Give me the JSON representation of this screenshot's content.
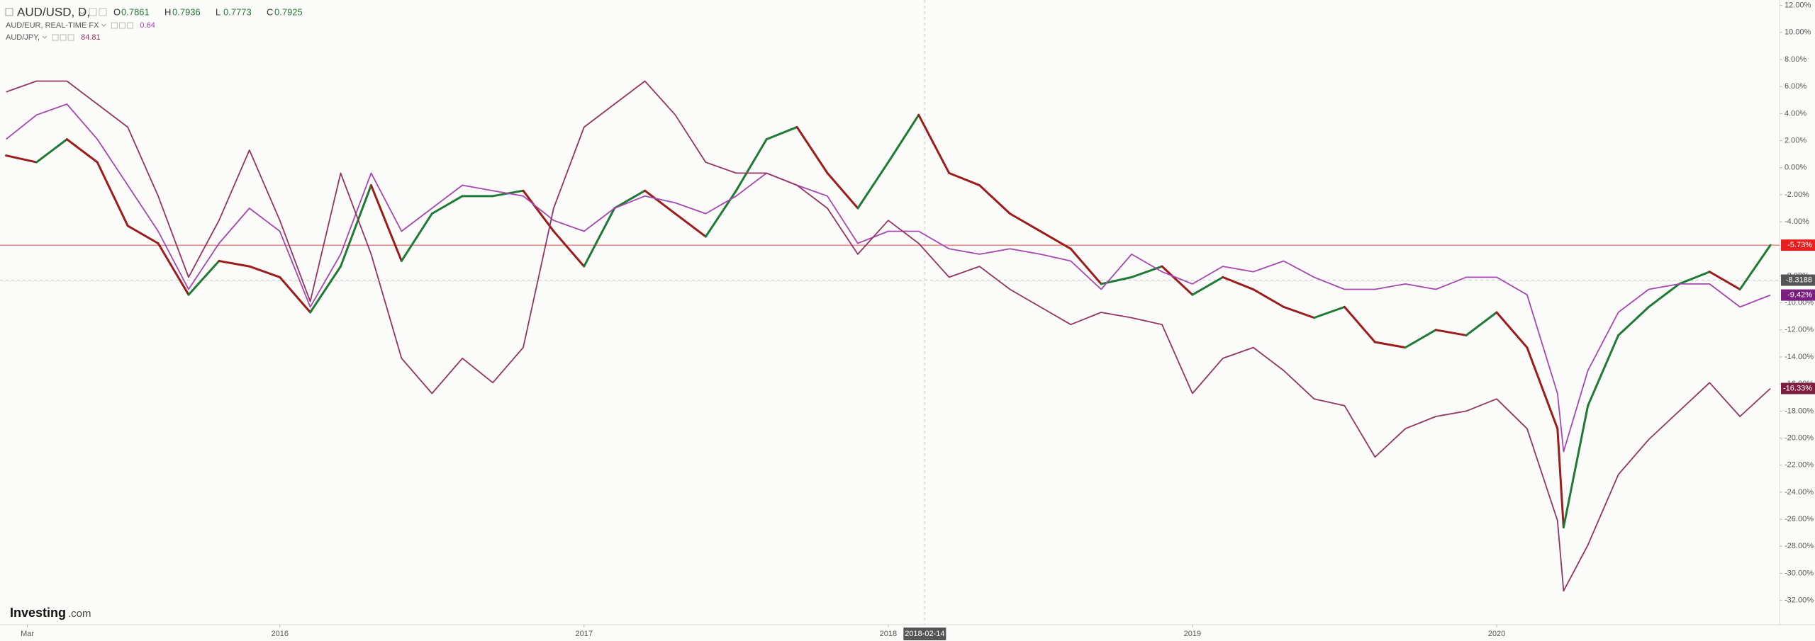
{
  "header": {
    "symbol": "AUD/USD, D,",
    "ohlc": [
      {
        "label": "O",
        "value": 0.7861
      },
      {
        "label": "H",
        "value": 0.7936
      },
      {
        "label": "L",
        "value": 0.7773
      },
      {
        "label": "C",
        "value": 0.7925
      }
    ]
  },
  "logo": {
    "brand": "Investing",
    "suffix": ".com"
  },
  "chart_data": {
    "type": "line",
    "x": [
      2015.1,
      2015.2,
      2015.3,
      2015.4,
      2015.5,
      2015.6,
      2015.7,
      2015.8,
      2015.9,
      2016.0,
      2016.1,
      2016.2,
      2016.3,
      2016.4,
      2016.5,
      2016.6,
      2016.7,
      2016.8,
      2016.9,
      2017.0,
      2017.1,
      2017.2,
      2017.3,
      2017.4,
      2017.5,
      2017.6,
      2017.7,
      2017.8,
      2017.9,
      2018.0,
      2018.1,
      2018.2,
      2018.3,
      2018.4,
      2018.5,
      2018.6,
      2018.7,
      2018.8,
      2018.9,
      2019.0,
      2019.1,
      2019.2,
      2019.3,
      2019.4,
      2019.5,
      2019.6,
      2019.7,
      2019.8,
      2019.9,
      2020.0,
      2020.1,
      2020.2,
      2020.22,
      2020.3,
      2020.4,
      2020.5,
      2020.6,
      2020.7,
      2020.8,
      2020.9
    ],
    "series": [
      {
        "name": "AUD/USD, D,",
        "style": "candle",
        "up_color": "#1e7a34",
        "down_color": "#9c1c1c",
        "color": "#2b5e2b",
        "values": [
          0.9,
          0.4,
          2.1,
          0.4,
          -4.3,
          -5.6,
          -9.4,
          -6.9,
          -7.3,
          -8.1,
          -10.7,
          -7.3,
          -1.3,
          -6.9,
          -3.4,
          -2.1,
          -2.1,
          -1.7,
          -4.7,
          -7.3,
          -3.0,
          -1.7,
          -3.4,
          -5.1,
          -1.7,
          2.1,
          3.0,
          -0.4,
          -3.0,
          0.4,
          3.9,
          -0.4,
          -1.3,
          -3.4,
          -4.7,
          -6.0,
          -8.6,
          -8.1,
          -7.3,
          -9.4,
          -8.1,
          -9.0,
          -10.3,
          -11.1,
          -10.3,
          -12.9,
          -13.3,
          -12.0,
          -12.4,
          -10.7,
          -13.3,
          -19.3,
          -26.6,
          -17.6,
          -12.4,
          -10.3,
          -8.6,
          -7.7,
          -9.0,
          -5.73
        ]
      },
      {
        "name": "AUD/EUR, REAL-TIME FX",
        "quote": 0.64,
        "color": "#a646b0",
        "values": [
          2.1,
          3.9,
          4.7,
          2.1,
          -1.3,
          -4.7,
          -9.0,
          -5.6,
          -3.0,
          -4.7,
          -10.3,
          -6.4,
          -0.4,
          -4.7,
          -3.0,
          -1.3,
          -1.7,
          -2.1,
          -3.9,
          -4.7,
          -3.0,
          -2.1,
          -2.6,
          -3.4,
          -2.1,
          -0.4,
          -1.3,
          -2.1,
          -5.6,
          -4.7,
          -4.7,
          -6.0,
          -6.4,
          -6.0,
          -6.4,
          -6.9,
          -9.0,
          -6.4,
          -7.7,
          -8.6,
          -7.3,
          -7.7,
          -6.9,
          -8.1,
          -9.0,
          -9.0,
          -8.6,
          -9.0,
          -8.1,
          -8.1,
          -9.4,
          -16.7,
          -21.0,
          -15.0,
          -10.7,
          -9.0,
          -8.6,
          -8.6,
          -10.3,
          -9.42
        ]
      },
      {
        "name": "AUD/JPY,",
        "quote": 84.81,
        "color": "#933461",
        "values": [
          5.6,
          6.4,
          6.4,
          4.7,
          3.0,
          -2.1,
          -8.1,
          -3.9,
          1.3,
          -3.9,
          -9.9,
          -0.4,
          -6.4,
          -14.1,
          -16.7,
          -14.1,
          -15.9,
          -13.3,
          -3.0,
          3.0,
          4.7,
          6.4,
          3.9,
          0.4,
          -0.4,
          -0.4,
          -1.3,
          -3.0,
          -6.4,
          -3.9,
          -5.6,
          -8.1,
          -7.3,
          -9.0,
          -10.3,
          -11.6,
          -10.7,
          -11.1,
          -11.6,
          -16.7,
          -14.1,
          -13.3,
          -15.0,
          -17.1,
          -17.6,
          -21.4,
          -19.3,
          -18.4,
          -18.0,
          -17.1,
          -19.3,
          -26.1,
          -31.3,
          -27.9,
          -22.7,
          -20.1,
          -18.0,
          -15.9,
          -18.4,
          -16.33
        ]
      }
    ],
    "xlim": [
      2015.08,
      2020.93
    ],
    "ylim": [
      -33.8,
      12.4
    ],
    "xticks": [
      {
        "value": 2015.17,
        "label": "Mar"
      },
      2016,
      2017,
      2018,
      2019,
      2020
    ],
    "yticks": [
      {
        "value": 12,
        "label": "12.00%"
      },
      {
        "value": 10,
        "label": "10.00%"
      },
      {
        "value": 8,
        "label": "8.00%"
      },
      {
        "value": 6,
        "label": "6.00%"
      },
      {
        "value": 4,
        "label": "4.00%"
      },
      {
        "value": 2,
        "label": "2.00%"
      },
      {
        "value": 0,
        "label": "0.00%"
      },
      {
        "value": -2,
        "label": "-2.00%"
      },
      {
        "value": -4,
        "label": "-4.00%"
      },
      {
        "value": -6,
        "label": "-6.00%"
      },
      {
        "value": -8,
        "label": "-8.00%"
      },
      {
        "value": -10,
        "label": "-10.00%"
      },
      {
        "value": -12,
        "label": "-12.00%"
      },
      {
        "value": -14,
        "label": "-14.00%"
      },
      {
        "value": -16,
        "label": "-16.00%"
      },
      {
        "value": -18,
        "label": "-18.00%"
      },
      {
        "value": -20,
        "label": "-20.00%"
      },
      {
        "value": -22,
        "label": "-22.00%"
      },
      {
        "value": -24,
        "label": "-24.00%"
      },
      {
        "value": -26,
        "label": "-26.00%"
      },
      {
        "value": -28,
        "label": "-28.00%"
      },
      {
        "value": -30,
        "label": "-30.00%"
      },
      {
        "value": -32,
        "label": "-32.00%"
      }
    ],
    "grid": false,
    "axis_tags": [
      {
        "value": -5.73,
        "label": "-5.73%",
        "color": "#e91e1e",
        "price_line": true
      },
      {
        "value": -9.42,
        "label": "-9.42%",
        "color": "#7b1f7e",
        "price_line": false
      },
      {
        "value": -16.33,
        "label": "-16.33%",
        "color": "#7d1d3f",
        "price_line": false
      }
    ],
    "crosshair": {
      "x": {
        "value": 2018.12,
        "label": "2018-02-14"
      },
      "y": -8.3188
    }
  }
}
